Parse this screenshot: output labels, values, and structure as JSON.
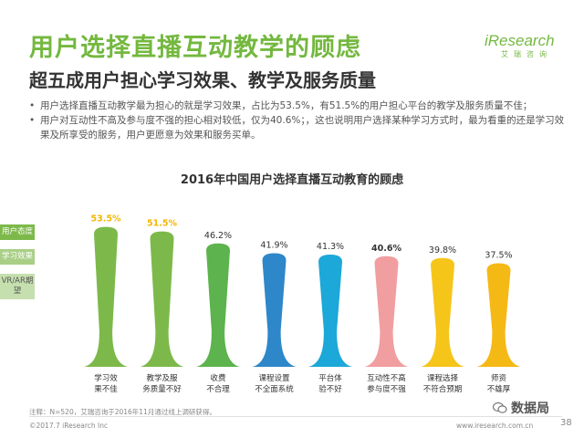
{
  "header": {
    "title": "用户选择直播互动教学的顾虑",
    "subtitle": "超五成用户担心学习效果、教学及服务质量"
  },
  "logo": {
    "brand": "iResearch",
    "cn": "艾瑞咨询"
  },
  "bullets": [
    "用户选择直播互动教学最为担心的就是学习效果，占比为53.5%，有51.5%的用户担心平台的教学及服务质量不佳；",
    "用户对互动性不高及参与度不强的担心相对较低，仅为40.6%；，这也说明用户选择某种学习方式时，最为看重的还是学习效果及所享受的服务，用户更愿意为效果和服务买单。"
  ],
  "side_labels": [
    "用户态度",
    "学习效果",
    "VR/AR期望"
  ],
  "chart_data": {
    "type": "bar",
    "title": "2016年中国用户选择直播互动教育的顾虑",
    "categories": [
      "学习效果不佳",
      "教学及服务质量不好",
      "收费不合理",
      "课程设置不全面系统",
      "平台体验不好",
      "互动性不高参与度不强",
      "课程选择不符合预期",
      "师资不雄厚"
    ],
    "category_lines": [
      [
        "学习效",
        "果不佳"
      ],
      [
        "教学及服",
        "务质量不好"
      ],
      [
        "收费",
        "不合理"
      ],
      [
        "课程设置",
        "不全面系统"
      ],
      [
        "平台体",
        "验不好"
      ],
      [
        "互动性不高",
        "参与度不强"
      ],
      [
        "课程选择",
        "不符合预期"
      ],
      [
        "师资",
        "不雄厚"
      ]
    ],
    "values": [
      53.5,
      51.5,
      46.2,
      41.9,
      41.3,
      40.6,
      39.8,
      37.5
    ],
    "value_labels": [
      "53.5%",
      "51.5%",
      "46.2%",
      "41.9%",
      "41.3%",
      "40.6%",
      "39.8%",
      "37.5%"
    ],
    "colors": [
      "#7cb94a",
      "#7cb94a",
      "#5db34d",
      "#2e87c8",
      "#1ca8d8",
      "#f19ea0",
      "#f6c51a",
      "#f5b915"
    ],
    "label_colors": [
      "#f2b705",
      "#f2b705",
      "#333333",
      "#333333",
      "#333333",
      "#333333",
      "#333333",
      "#333333"
    ],
    "ylim": [
      0,
      60
    ]
  },
  "footnote": "注释：N=520，艾瑞咨询于2016年11月通过线上调研获得。",
  "footer": {
    "copyright": "©2017.7 iResearch Inc",
    "url": "www.iresearch.com.cn",
    "page": "38",
    "watermark": "数据局"
  }
}
